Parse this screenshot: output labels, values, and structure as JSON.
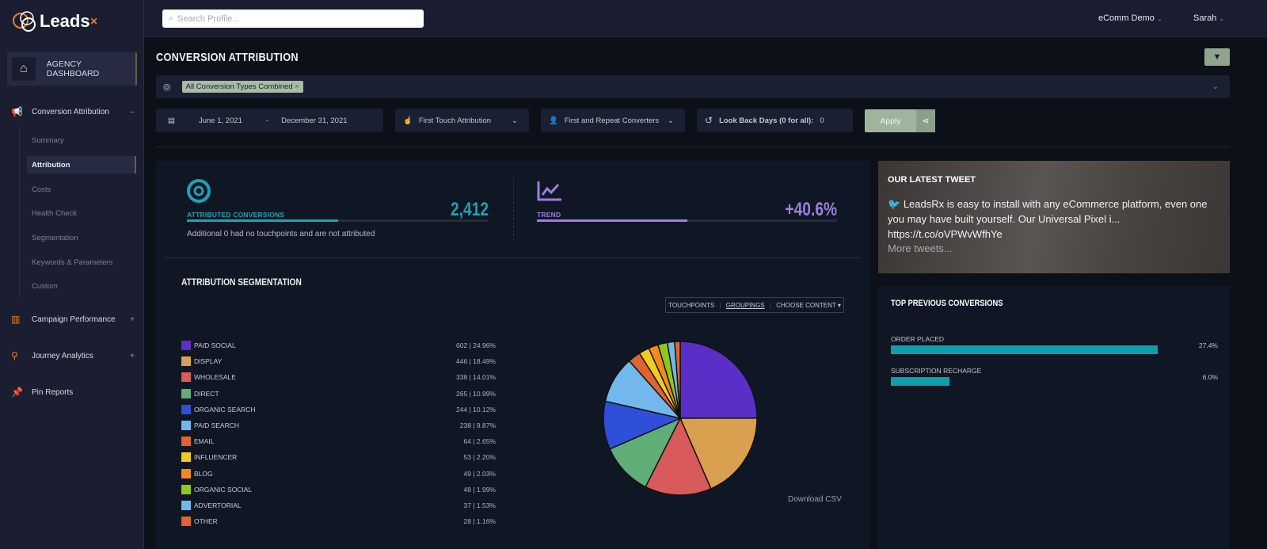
{
  "app": {
    "logo_text": "Leads",
    "logo_suffix": "Rx"
  },
  "topbar": {
    "search_placeholder": "Search Profile...",
    "account": "eComm Demo",
    "user": "Sarah"
  },
  "sidebar": {
    "agency": "AGENCY DASHBOARD",
    "sections": [
      {
        "label": "Conversion Attribution",
        "toggle": "–"
      },
      {
        "label": "Campaign Performance",
        "toggle": "+"
      },
      {
        "label": "Journey Analytics",
        "toggle": "+"
      },
      {
        "label": "Pin Reports",
        "toggle": ""
      }
    ],
    "sub_items": [
      "Summary",
      "Attribution",
      "Costs",
      "Health Check",
      "Segmentation",
      "Keywords & Parameters",
      "Custom"
    ],
    "active": "Attribution"
  },
  "page": {
    "title": "CONVERSION ATTRIBUTION"
  },
  "filters": {
    "conversion_tag": "All Conversion Types Combined",
    "date_start": "June 1, 2021",
    "date_sep": "-",
    "date_end": "December 31, 2021",
    "attribution": "First Touch Attribution",
    "converters": "First and Repeat Converters",
    "lookback_label": "Look Back Days (0 for all):",
    "lookback_value": "0",
    "apply": "Apply"
  },
  "kpis": {
    "conversions": {
      "label": "ATTRIBUTED CONVERSIONS",
      "value": "2,412",
      "note": "Additional 0 had no touchpoints and are not attributed",
      "color": "#1ba3b3",
      "fill": 0.5
    },
    "trend": {
      "label": "TREND",
      "value": "+40.6%",
      "color": "#9d7fe0",
      "fill": 0.5
    }
  },
  "segmentation": {
    "title": "ATTRIBUTION SEGMENTATION",
    "tabs": [
      "TOUCHPOINTS",
      "GROUPINGS",
      "CHOOSE CONTENT ▾"
    ],
    "active_tab": "GROUPINGS",
    "download": "Download CSV"
  },
  "chart_data": {
    "type": "pie",
    "slices": [
      {
        "name": "PAID SOCIAL",
        "value": 602,
        "label": "602 | 24.96%",
        "color": "#5a2fc8"
      },
      {
        "name": "DISPLAY",
        "value": 446,
        "label": "446 | 18.49%",
        "color": "#d9a050"
      },
      {
        "name": "WHOLESALE",
        "value": 338,
        "label": "338 | 14.01%",
        "color": "#d85a5a"
      },
      {
        "name": "DIRECT",
        "value": 265,
        "label": "265 | 10.99%",
        "color": "#5fae78"
      },
      {
        "name": "ORGANIC SEARCH",
        "value": 244,
        "label": "244 | 10.12%",
        "color": "#2f4fd8"
      },
      {
        "name": "PAID SEARCH",
        "value": 238,
        "label": "238 | 9.87%",
        "color": "#72b8ec"
      },
      {
        "name": "EMAIL",
        "value": 64,
        "label": "64 | 2.65%",
        "color": "#e0642e"
      },
      {
        "name": "INFLUENCER",
        "value": 53,
        "label": "53 | 2.20%",
        "color": "#f2cc1c"
      },
      {
        "name": "BLOG",
        "value": 49,
        "label": "49 | 2.03%",
        "color": "#f58a1c"
      },
      {
        "name": "ORGANIC SOCIAL",
        "value": 48,
        "label": "48 | 1.99%",
        "color": "#8fc81c"
      },
      {
        "name": "ADVERTORIAL",
        "value": 37,
        "label": "37 | 1.53%",
        "color": "#72b8ec"
      },
      {
        "name": "OTHER",
        "value": 28,
        "label": "28 | 1.16%",
        "color": "#e0642e"
      }
    ]
  },
  "tweet": {
    "title": "OUR LATEST TWEET",
    "text": "LeadsRx is easy to install with any eCommerce platform, even one you may have built yourself. Our Universal Pixel i...",
    "link": "https://t.co/oVPWvWfhYe",
    "more": "More tweets..."
  },
  "previous": {
    "title": "TOP PREVIOUS CONVERSIONS",
    "items": [
      {
        "label": "ORDER PLACED",
        "pct": "27.4%",
        "value": 27.4
      },
      {
        "label": "SUBSCRIPTION RECHARGE",
        "pct": "6.0%",
        "value": 6.0
      }
    ]
  }
}
